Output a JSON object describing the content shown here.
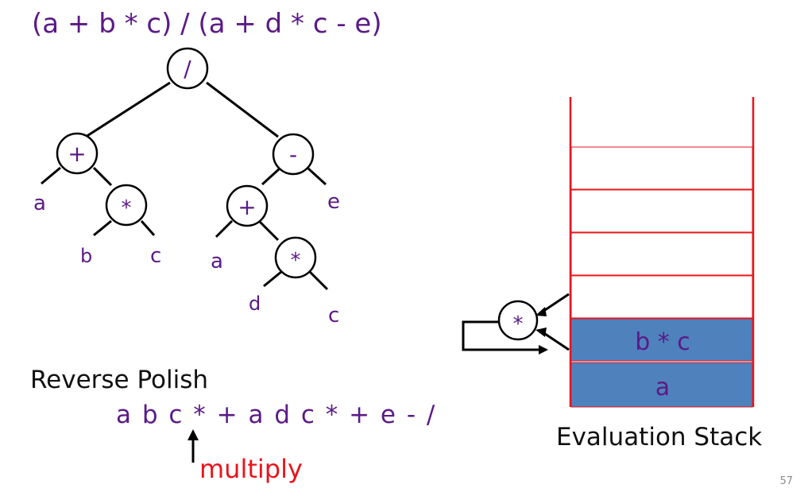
{
  "expression": "(a + b * c) / (a + d * c - e)",
  "tree": {
    "root_op": "/",
    "left_plus": "+",
    "leaf_a1": "a",
    "left_mul": "*",
    "leaf_b": "b",
    "leaf_c1": "c",
    "right_minus": "-",
    "leaf_e": "e",
    "right_plus": "+",
    "leaf_a2": "a",
    "right_mul": "*",
    "leaf_d": "d",
    "leaf_c2": "c"
  },
  "reverse_polish": {
    "heading": "Reverse Polish",
    "expression": "a b c * + a d c * + e - /",
    "pointer_label": "multiply"
  },
  "stack": {
    "operator": "*",
    "cells": [
      "",
      "",
      "",
      "",
      "b * c",
      "a"
    ],
    "label": "Evaluation Stack"
  },
  "page_number": "57",
  "colors": {
    "purple": "#5b1a86",
    "red": "#e8141c",
    "stack_fill": "#4f81bd",
    "stack_border": "#e8141c"
  }
}
